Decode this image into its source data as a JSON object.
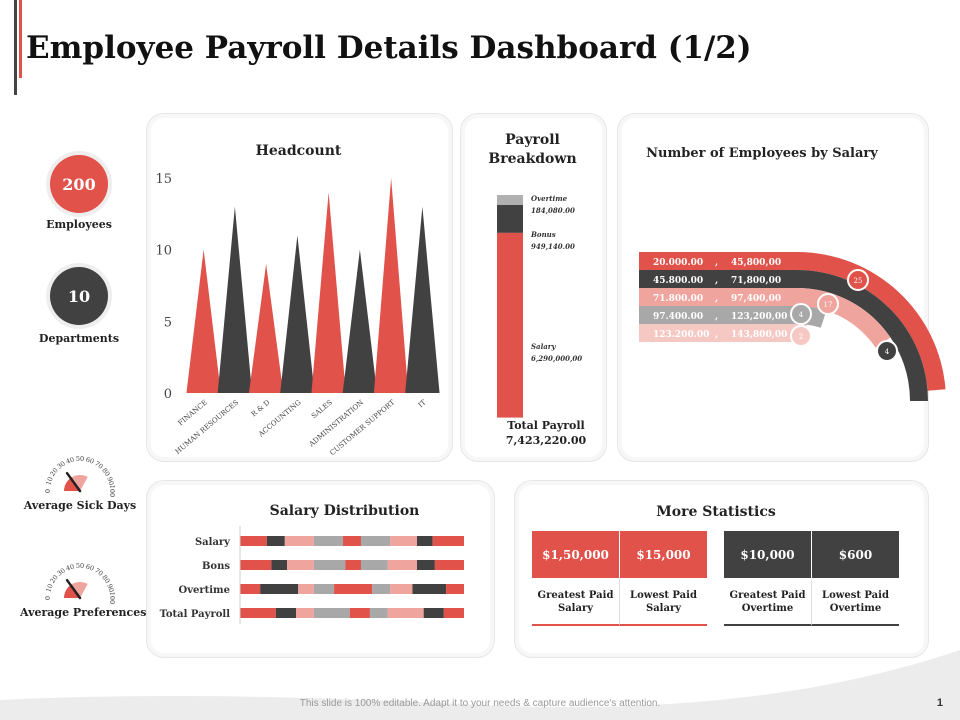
{
  "page": {
    "title": "Employee Payroll Details Dashboard (1/2)",
    "footer": "This slide is 100% editable. Adapt it to your needs & capture audience's attention.",
    "page_number": "1"
  },
  "colors": {
    "red": "#e0524a",
    "dark": "#414141",
    "pink": "#f0a49e",
    "light_pink": "#f6c8c4",
    "gray": "#a8a8a8",
    "light_gray": "#d9d9d9"
  },
  "kpis": [
    {
      "value": "200",
      "label": "Employees",
      "color": "#e0524a"
    },
    {
      "value": "10",
      "label": "Departments",
      "color": "#414141"
    }
  ],
  "gauges": [
    {
      "label": "Average Sick Days",
      "ticks": [
        "0",
        "10",
        "20",
        "30",
        "40",
        "50",
        "60",
        "70",
        "80",
        "90",
        "100"
      ],
      "value": 30
    },
    {
      "label": "Average Preferences",
      "ticks": [
        "0",
        "10",
        "20",
        "30",
        "40",
        "50",
        "60",
        "70",
        "80",
        "90",
        "100"
      ],
      "value": 30
    }
  ],
  "payroll": {
    "title": "Payroll Breakdown",
    "total_label": "Total Payroll",
    "total_value": "7,423,220.00",
    "segments": [
      {
        "name": "Overtime",
        "value_label": "184,080.00",
        "value": 184080,
        "color": "#b0b0b0"
      },
      {
        "name": "Bonus",
        "value_label": "949,140.00",
        "value": 949140,
        "color": "#414141"
      },
      {
        "name": "Salary",
        "value_label": "6,290,000,00",
        "value": 6290000,
        "color": "#e0524a"
      }
    ]
  },
  "salary_bands": {
    "title": "Number of Employees by Salary",
    "rows": [
      {
        "from": "20.000.00",
        "sep": ",",
        "to": "45,800,00",
        "count": "25",
        "color": "#e0524a"
      },
      {
        "from": "45.800.00",
        "sep": ",",
        "to": "71,800,00",
        "count": "4",
        "color": "#414141"
      },
      {
        "from": "71.800.00",
        "sep": ",",
        "to": "97,400,00",
        "count": "17",
        "color": "#f0a49e"
      },
      {
        "from": "97.400.00",
        "sep": ",",
        "to": "123,200,00",
        "count": "4",
        "color": "#a8a8a8"
      },
      {
        "from": "123.200.00",
        "sep": ",",
        "to": "143,800,00",
        "count": "2",
        "color": "#f6c8c4"
      }
    ]
  },
  "salary_distribution": {
    "title": "Salary Distribution",
    "rows": [
      {
        "label": "Salary",
        "segments": [
          {
            "w": 12,
            "c": "#e0524a"
          },
          {
            "w": 8,
            "c": "#414141"
          },
          {
            "w": 13,
            "c": "#f0a49e"
          },
          {
            "w": 13,
            "c": "#a8a8a8"
          },
          {
            "w": 8,
            "c": "#e0524a"
          },
          {
            "w": 13,
            "c": "#a8a8a8"
          },
          {
            "w": 12,
            "c": "#f0a49e"
          },
          {
            "w": 7,
            "c": "#414141"
          },
          {
            "w": 14,
            "c": "#e0524a"
          }
        ]
      },
      {
        "label": "Bons",
        "segments": [
          {
            "w": 14,
            "c": "#e0524a"
          },
          {
            "w": 7,
            "c": "#414141"
          },
          {
            "w": 12,
            "c": "#f0a49e"
          },
          {
            "w": 14,
            "c": "#a8a8a8"
          },
          {
            "w": 7,
            "c": "#e0524a"
          },
          {
            "w": 12,
            "c": "#a8a8a8"
          },
          {
            "w": 13,
            "c": "#f0a49e"
          },
          {
            "w": 8,
            "c": "#414141"
          },
          {
            "w": 13,
            "c": "#e0524a"
          }
        ]
      },
      {
        "label": "Overtime",
        "segments": [
          {
            "w": 9,
            "c": "#e0524a"
          },
          {
            "w": 17,
            "c": "#414141"
          },
          {
            "w": 7,
            "c": "#f0a49e"
          },
          {
            "w": 9,
            "c": "#a8a8a8"
          },
          {
            "w": 17,
            "c": "#e0524a"
          },
          {
            "w": 8,
            "c": "#a8a8a8"
          },
          {
            "w": 10,
            "c": "#f0a49e"
          },
          {
            "w": 15,
            "c": "#414141"
          },
          {
            "w": 8,
            "c": "#e0524a"
          }
        ]
      },
      {
        "label": "Total Payroll",
        "segments": [
          {
            "w": 16,
            "c": "#e0524a"
          },
          {
            "w": 9,
            "c": "#414141"
          },
          {
            "w": 8,
            "c": "#f0a49e"
          },
          {
            "w": 16,
            "c": "#a8a8a8"
          },
          {
            "w": 9,
            "c": "#e0524a"
          },
          {
            "w": 8,
            "c": "#a8a8a8"
          },
          {
            "w": 16,
            "c": "#f0a49e"
          },
          {
            "w": 9,
            "c": "#414141"
          },
          {
            "w": 9,
            "c": "#e0524a"
          }
        ]
      }
    ]
  },
  "more_statistics": {
    "title": "More Statistics",
    "cells": [
      {
        "value": "$1,50,000",
        "label": "Greatest Paid Salary",
        "color": "#e0524a"
      },
      {
        "value": "$15,000",
        "label": "Lowest Paid Salary",
        "color": "#e0524a"
      },
      {
        "value": "$10,000",
        "label": "Greatest Paid Overtime",
        "color": "#414141"
      },
      {
        "value": "$600",
        "label": "Lowest Paid Overtime",
        "color": "#414141"
      }
    ]
  },
  "chart_data": {
    "type": "area",
    "title": "Headcount",
    "xlabel": "",
    "ylabel": "",
    "ylim": [
      0,
      15
    ],
    "yticks": [
      "0",
      "5",
      "10",
      "15"
    ],
    "categories": [
      "FINANCE",
      "HUMAN RESOURCES",
      "R & D",
      "ACCOUNTING",
      "SALES",
      "ADMINISTRATION",
      "CUSTOMER SUPPORT",
      "IT"
    ],
    "values": [
      10,
      13,
      9,
      11,
      14,
      10,
      15,
      13
    ],
    "colors": [
      "#e0524a",
      "#414141",
      "#e0524a",
      "#414141",
      "#e0524a",
      "#414141",
      "#e0524a",
      "#414141"
    ],
    "grid": false,
    "legend": "none"
  }
}
